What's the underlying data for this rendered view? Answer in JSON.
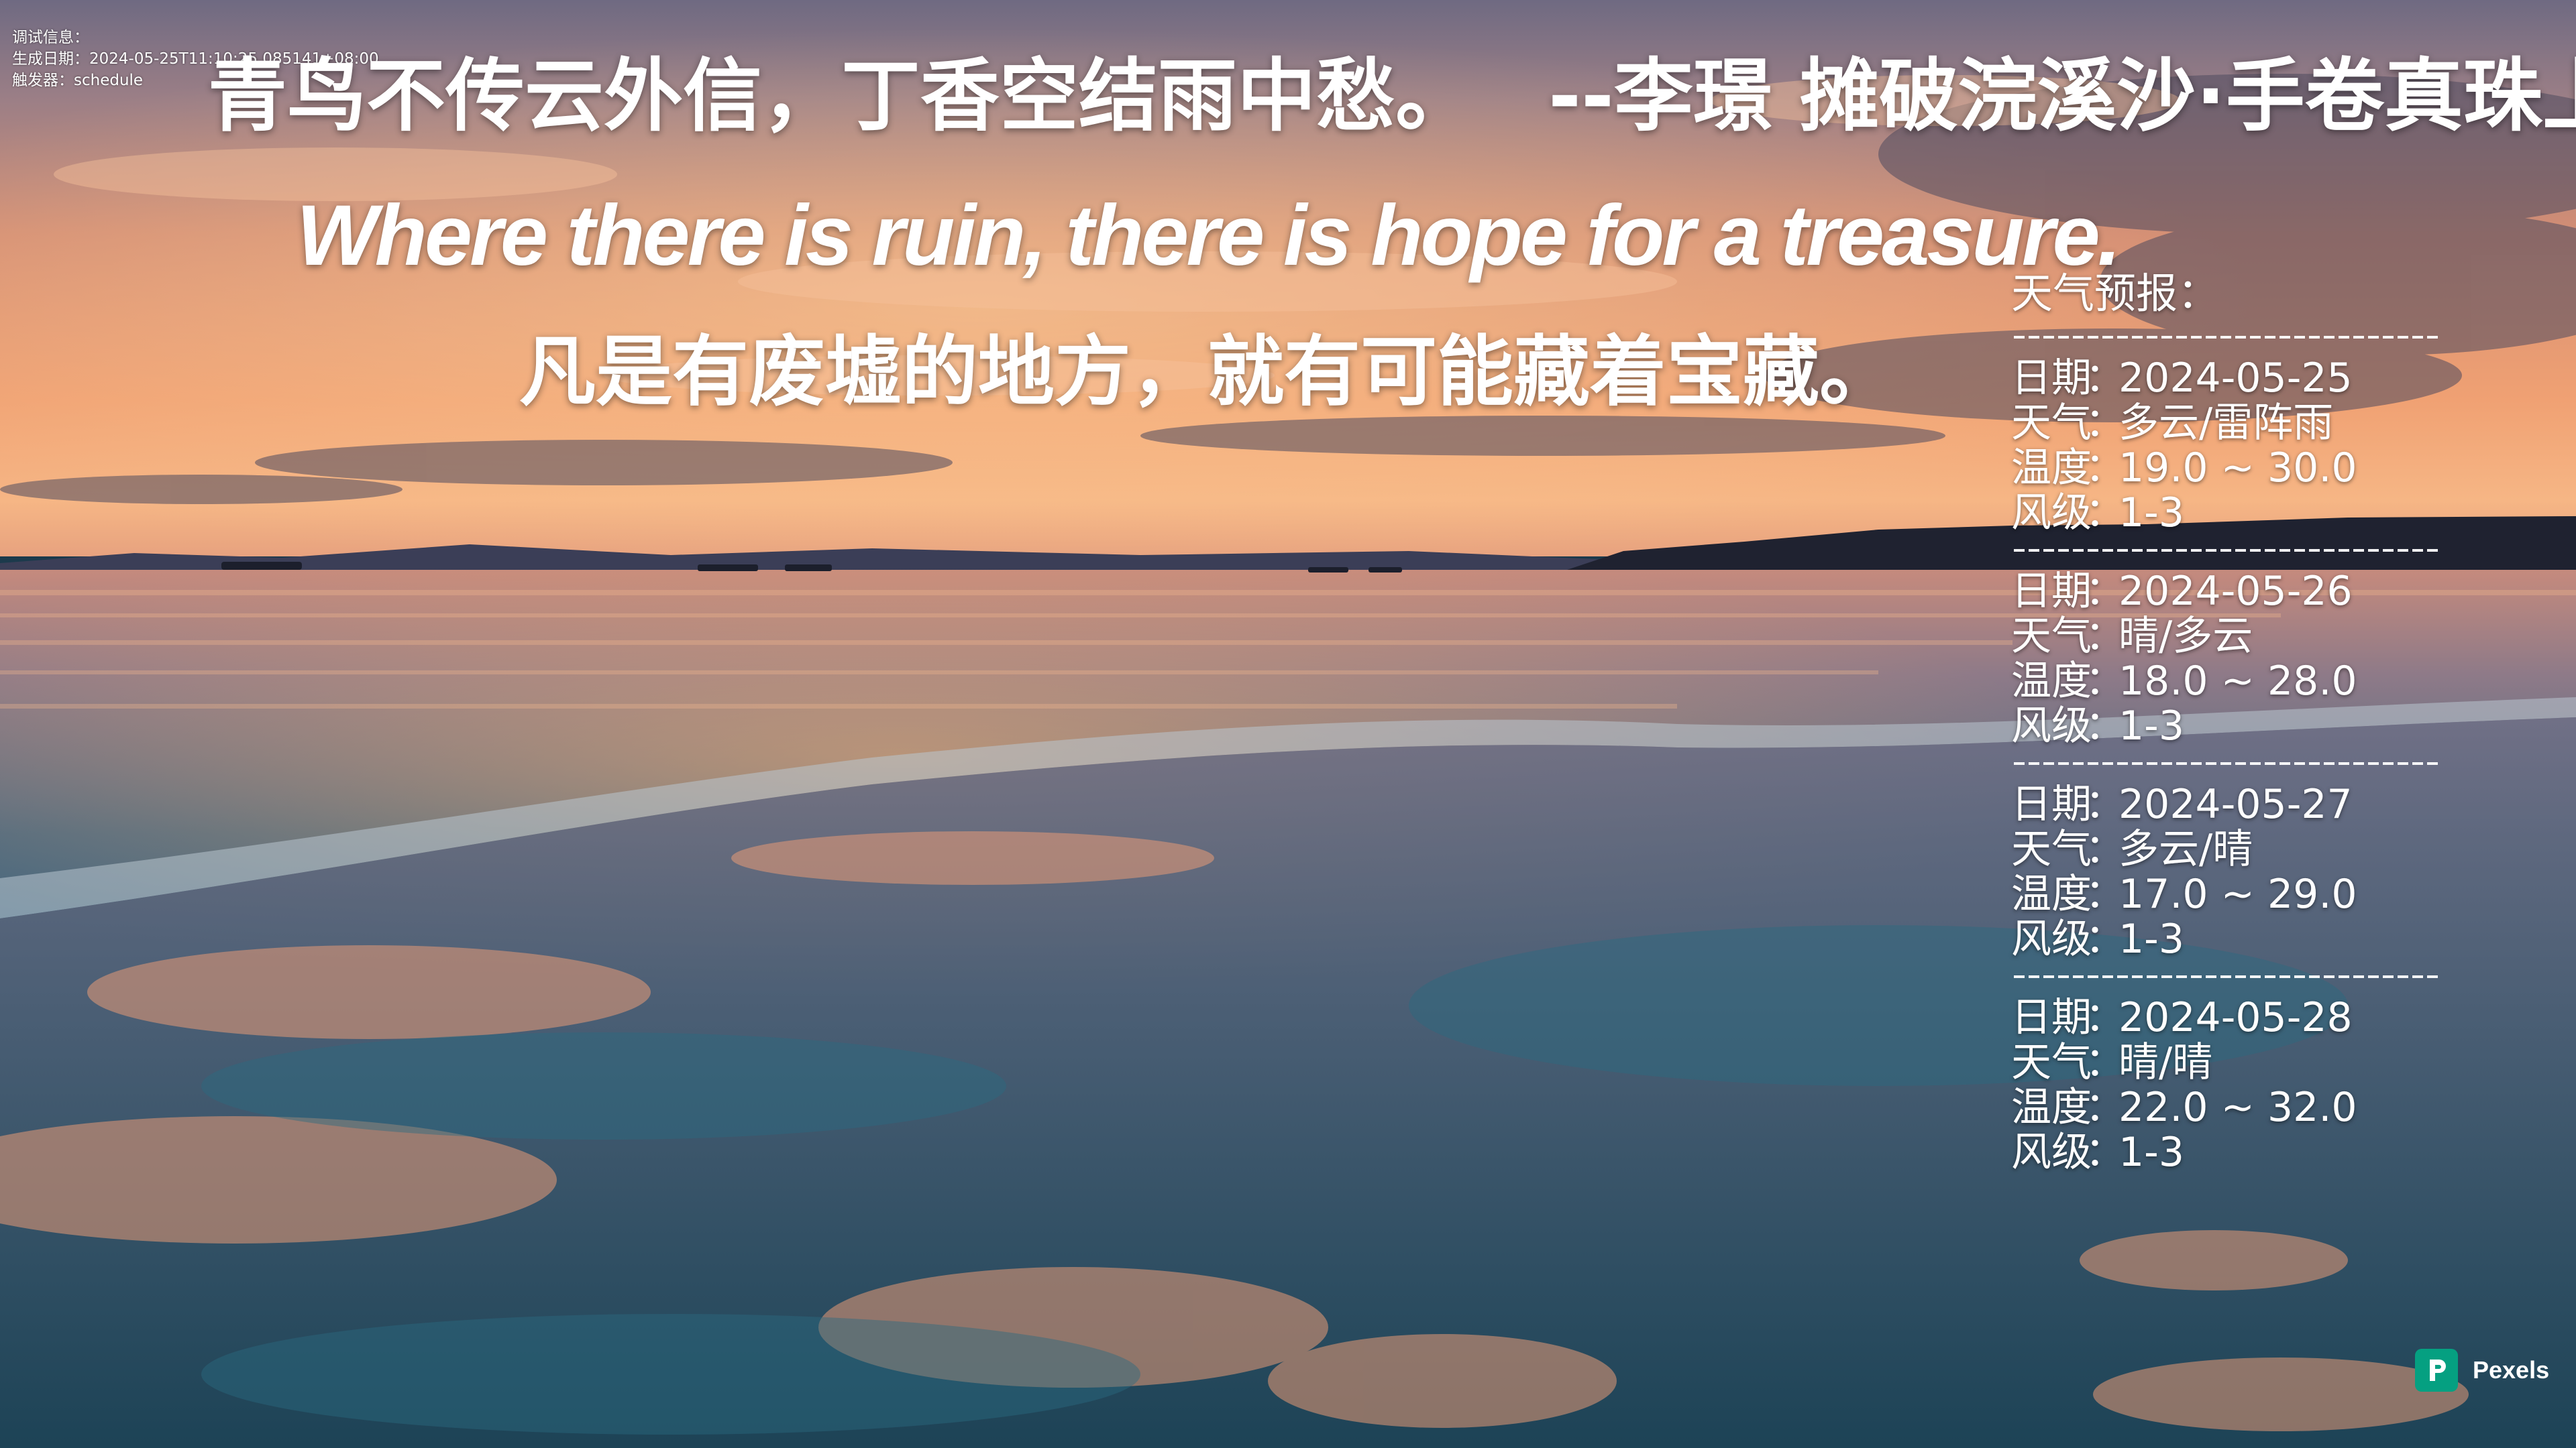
{
  "debug": {
    "label": "调试信息：",
    "generated": "生成日期：2024-05-25T11:10:25.085141+08:00",
    "trigger": "触发器：schedule"
  },
  "poem": {
    "text": "青鸟不传云外信，丁香空结雨中愁。",
    "attribution": "--李璟 摊破浣溪沙·手卷真珠上玉钩"
  },
  "quote": {
    "en": "Where there is ruin, there is hope for a treasure.",
    "zh": "凡是有废墟的地方，就有可能藏着宝藏。"
  },
  "weather": {
    "title": "天气预报：",
    "labels": {
      "date": "日期",
      "weather": "天气",
      "temp": "温度",
      "wind": "风级",
      "colon": "："
    },
    "days": [
      {
        "date": "2024-05-25",
        "condition": "多云/雷阵雨",
        "temp": "19.0 ~ 30.0",
        "wind": "1-3"
      },
      {
        "date": "2024-05-26",
        "condition": "晴/多云",
        "temp": "18.0 ~ 28.0",
        "wind": "1-3"
      },
      {
        "date": "2024-05-27",
        "condition": "多云/晴",
        "temp": "17.0 ~ 29.0",
        "wind": "1-3"
      },
      {
        "date": "2024-05-28",
        "condition": "晴/晴",
        "temp": "22.0 ~ 32.0",
        "wind": "1-3"
      }
    ]
  },
  "watermark": {
    "brand": "Pexels",
    "color": "#05a081"
  },
  "colors": {
    "text": "#ffffff",
    "sky_top": "#7a6f86",
    "horizon_glow": "#f2a46a",
    "sea": "#1d4a5c"
  }
}
